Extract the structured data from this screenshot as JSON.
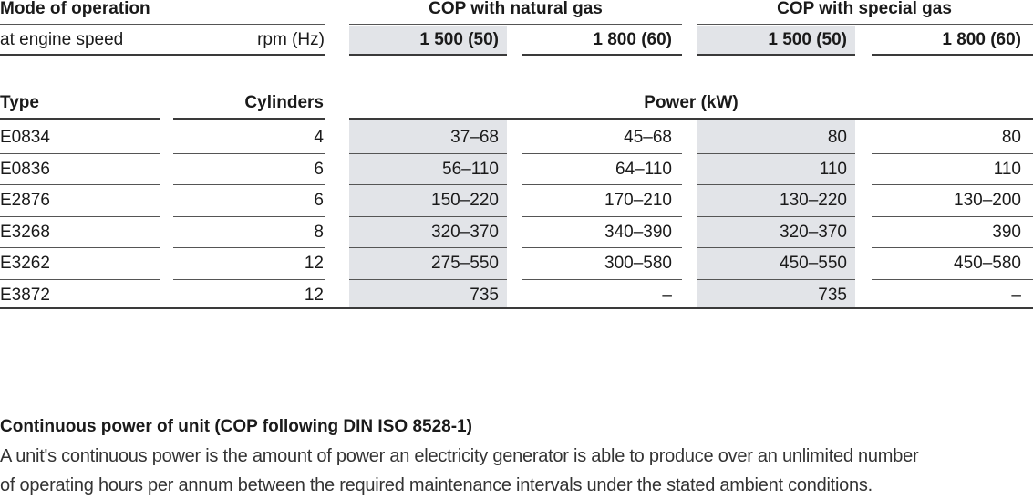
{
  "header": {
    "mode_label": "Mode of operation",
    "cop_natural_gas": "COP with natural gas",
    "cop_special_gas": "COP with special gas",
    "engine_speed_label": "at engine speed",
    "rpm_unit": "rpm (Hz)",
    "speeds": [
      "1 500 (50)",
      "1 800 (60)",
      "1 500 (50)",
      "1 800 (60)"
    ]
  },
  "columns": {
    "type": "Type",
    "cylinders": "Cylinders",
    "power": "Power (kW)"
  },
  "rows": [
    {
      "type": "E0834",
      "cylinders": "4",
      "v": [
        "37–68",
        "45–68",
        "80",
        "80"
      ]
    },
    {
      "type": "E0836",
      "cylinders": "6",
      "v": [
        "56–110",
        "64–110",
        "110",
        "110"
      ]
    },
    {
      "type": "E2876",
      "cylinders": "6",
      "v": [
        "150–220",
        "170–210",
        "130–220",
        "130–200"
      ]
    },
    {
      "type": "E3268",
      "cylinders": "8",
      "v": [
        "320–370",
        "340–390",
        "320–370",
        "390"
      ]
    },
    {
      "type": "E3262",
      "cylinders": "12",
      "v": [
        "275–550",
        "300–580",
        "450–550",
        "450–580"
      ]
    },
    {
      "type": "E3872",
      "cylinders": "12",
      "v": [
        "735",
        "–",
        "735",
        "–"
      ]
    }
  ],
  "note": {
    "title": "Continuous power of unit (COP following DIN ISO 8528-1)",
    "body_line1": "A unit's continuous power is the amount of power an electricity generator is able to produce over an unlimited number",
    "body_line2": "of operating hours per annum between the required maintenance intervals under the stated ambient conditions."
  }
}
